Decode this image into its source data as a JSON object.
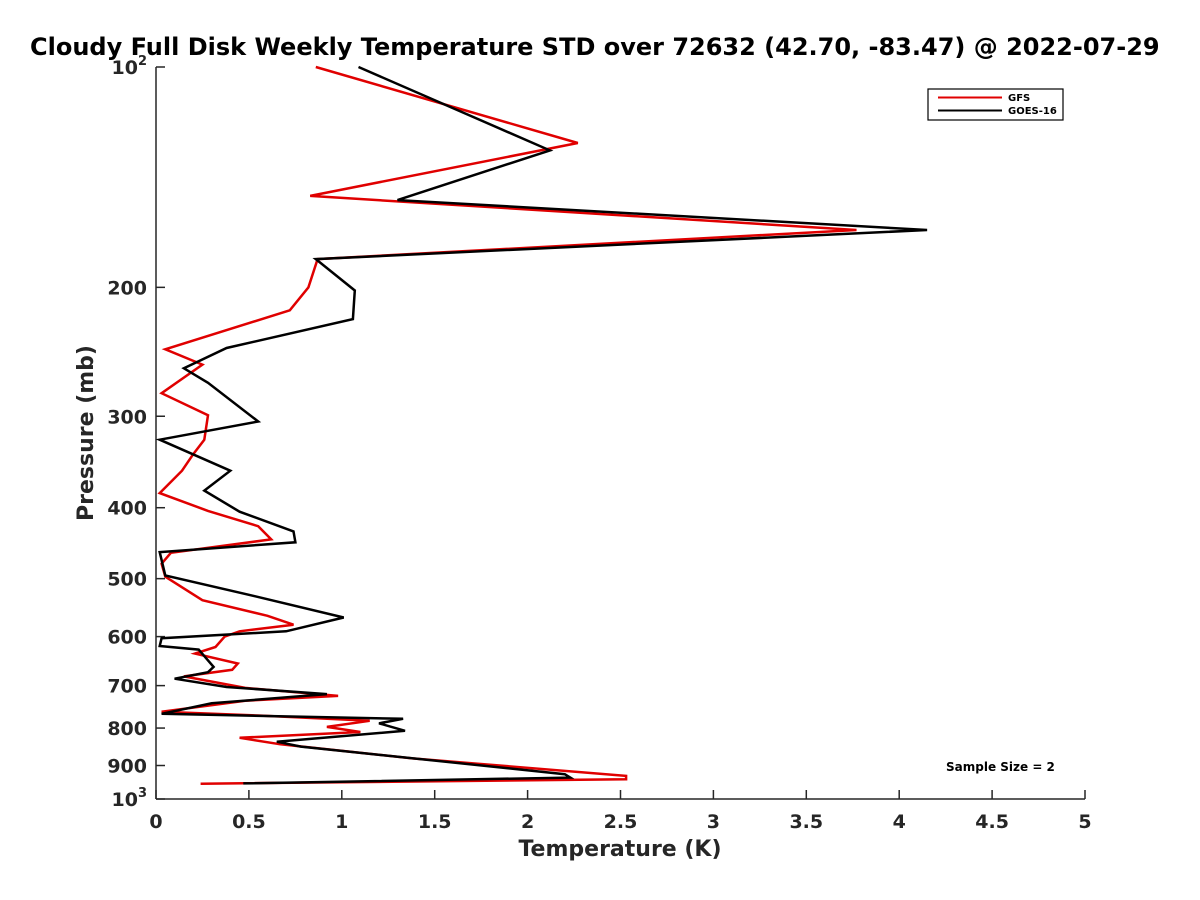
{
  "chart_data": {
    "type": "line",
    "title": "Cloudy Full Disk Weekly Temperature STD over 72632 (42.70, -83.47) @ 2022-07-29",
    "xlabel": "Temperature (K)",
    "ylabel": "Pressure (mb)",
    "xlim": [
      0,
      5
    ],
    "ylim": [
      100,
      1000
    ],
    "y_scale": "log",
    "y_reversed": true,
    "x_ticks": [
      {
        "value": 0,
        "label": "0"
      },
      {
        "value": 0.5,
        "label": "0.5"
      },
      {
        "value": 1,
        "label": "1"
      },
      {
        "value": 1.5,
        "label": "1.5"
      },
      {
        "value": 2,
        "label": "2"
      },
      {
        "value": 2.5,
        "label": "2.5"
      },
      {
        "value": 3,
        "label": "3"
      },
      {
        "value": 3.5,
        "label": "3.5"
      },
      {
        "value": 4,
        "label": "4"
      },
      {
        "value": 4.5,
        "label": "4.5"
      },
      {
        "value": 5,
        "label": "5"
      }
    ],
    "y_ticks": [
      {
        "value": 100,
        "base": "10",
        "exp": "2"
      },
      {
        "value": 200,
        "base": "200",
        "exp": ""
      },
      {
        "value": 300,
        "base": "300",
        "exp": ""
      },
      {
        "value": 400,
        "base": "400",
        "exp": ""
      },
      {
        "value": 500,
        "base": "500",
        "exp": ""
      },
      {
        "value": 600,
        "base": "600",
        "exp": ""
      },
      {
        "value": 700,
        "base": "700",
        "exp": ""
      },
      {
        "value": 800,
        "base": "800",
        "exp": ""
      },
      {
        "value": 900,
        "base": "900",
        "exp": ""
      },
      {
        "value": 1000,
        "base": "10",
        "exp": "3"
      }
    ],
    "grid": false,
    "legend_position": "top-right",
    "annotation": "Sample Size = 2",
    "series": [
      {
        "name": "GFS",
        "color": "#e00000",
        "points": [
          [
            0.86,
            100
          ],
          [
            2.27,
            127
          ],
          [
            0.83,
            150
          ],
          [
            3.77,
            167
          ],
          [
            0.87,
            183
          ],
          [
            0.82,
            200
          ],
          [
            0.72,
            215
          ],
          [
            0.05,
            243
          ],
          [
            0.25,
            255
          ],
          [
            0.03,
            279
          ],
          [
            0.28,
            299
          ],
          [
            0.26,
            323
          ],
          [
            0.2,
            338
          ],
          [
            0.14,
            356
          ],
          [
            0.02,
            382
          ],
          [
            0.28,
            404
          ],
          [
            0.55,
            424
          ],
          [
            0.62,
            442
          ],
          [
            0.08,
            461
          ],
          [
            0.03,
            477
          ],
          [
            0.05,
            497
          ],
          [
            0.25,
            535
          ],
          [
            0.6,
            562
          ],
          [
            0.74,
            578
          ],
          [
            0.45,
            590
          ],
          [
            0.37,
            600
          ],
          [
            0.32,
            620
          ],
          [
            0.21,
            633
          ],
          [
            0.44,
            653
          ],
          [
            0.41,
            666
          ],
          [
            0.15,
            680
          ],
          [
            0.48,
            705
          ],
          [
            0.98,
            723
          ],
          [
            0.48,
            734
          ],
          [
            0.03,
            760
          ],
          [
            0.55,
            769
          ],
          [
            1.15,
            782
          ],
          [
            0.92,
            797
          ],
          [
            1.1,
            810
          ],
          [
            0.45,
            825
          ],
          [
            0.67,
            842
          ],
          [
            1.38,
            880
          ],
          [
            2.53,
            930
          ],
          [
            2.53,
            940
          ],
          [
            0.24,
            953
          ]
        ]
      },
      {
        "name": "GOES-16",
        "color": "#000000",
        "points": [
          [
            1.09,
            100
          ],
          [
            2.12,
            130
          ],
          [
            1.3,
            152
          ],
          [
            4.15,
            167
          ],
          [
            0.86,
            183
          ],
          [
            1.07,
            202
          ],
          [
            1.06,
            221
          ],
          [
            0.38,
            242
          ],
          [
            0.15,
            258
          ],
          [
            0.28,
            270
          ],
          [
            0.55,
            305
          ],
          [
            0.02,
            323
          ],
          [
            0.4,
            356
          ],
          [
            0.26,
            379
          ],
          [
            0.45,
            405
          ],
          [
            0.74,
            431
          ],
          [
            0.75,
            446
          ],
          [
            0.02,
            460
          ],
          [
            0.05,
            495
          ],
          [
            0.5,
            526
          ],
          [
            1.01,
            565
          ],
          [
            0.7,
            590
          ],
          [
            0.03,
            603
          ],
          [
            0.02,
            618
          ],
          [
            0.23,
            625
          ],
          [
            0.31,
            660
          ],
          [
            0.28,
            671
          ],
          [
            0.1,
            685
          ],
          [
            0.38,
            703
          ],
          [
            0.92,
            719
          ],
          [
            0.3,
            740
          ],
          [
            0.03,
            765
          ],
          [
            1.33,
            777
          ],
          [
            1.2,
            788
          ],
          [
            1.34,
            807
          ],
          [
            0.65,
            835
          ],
          [
            0.78,
            848
          ],
          [
            2.2,
            925
          ],
          [
            2.23,
            935
          ],
          [
            0.47,
            952
          ]
        ]
      }
    ]
  }
}
